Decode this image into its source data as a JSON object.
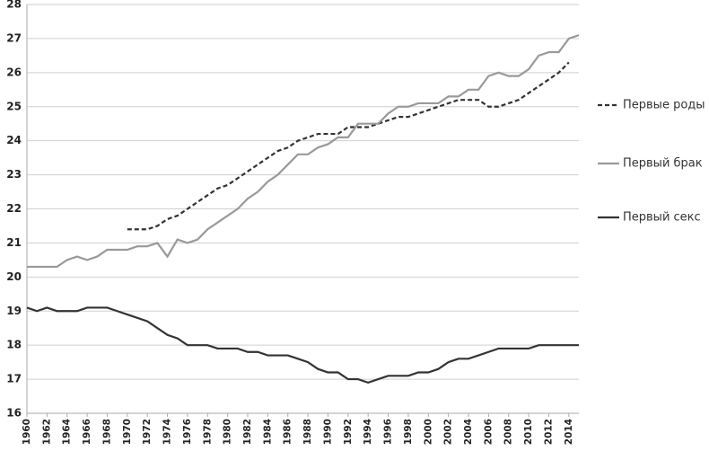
{
  "chart_data": {
    "type": "line",
    "x": [
      1960,
      1961,
      1962,
      1963,
      1964,
      1965,
      1966,
      1967,
      1968,
      1969,
      1970,
      1971,
      1972,
      1973,
      1974,
      1975,
      1976,
      1977,
      1978,
      1979,
      1980,
      1981,
      1982,
      1983,
      1984,
      1985,
      1986,
      1987,
      1988,
      1989,
      1990,
      1991,
      1992,
      1993,
      1994,
      1995,
      1996,
      1997,
      1998,
      1999,
      2000,
      2001,
      2002,
      2003,
      2004,
      2005,
      2006,
      2007,
      2008,
      2009,
      2010,
      2011,
      2012,
      2013,
      2014,
      2015
    ],
    "series": [
      {
        "name": "Первые роды",
        "color": "#333333",
        "dashed": true,
        "values": [
          null,
          null,
          null,
          null,
          null,
          null,
          null,
          null,
          null,
          null,
          21.4,
          21.4,
          21.4,
          21.5,
          21.7,
          21.8,
          22.0,
          22.2,
          22.4,
          22.6,
          22.7,
          22.9,
          23.1,
          23.3,
          23.5,
          23.7,
          23.8,
          24.0,
          24.1,
          24.2,
          24.2,
          24.2,
          24.4,
          24.4,
          24.4,
          24.5,
          24.6,
          24.7,
          24.7,
          24.8,
          24.9,
          25.0,
          25.1,
          25.2,
          25.2,
          25.2,
          25.0,
          25.0,
          25.1,
          25.2,
          25.4,
          25.6,
          25.8,
          26.0,
          26.3,
          null
        ]
      },
      {
        "name": "Первый брак",
        "color": "#999999",
        "dashed": false,
        "values": [
          20.3,
          20.3,
          20.3,
          20.3,
          20.5,
          20.6,
          20.5,
          20.6,
          20.8,
          20.8,
          20.8,
          20.9,
          20.9,
          21.0,
          20.6,
          21.1,
          21.0,
          21.1,
          21.4,
          21.6,
          21.8,
          22.0,
          22.3,
          22.5,
          22.8,
          23.0,
          23.3,
          23.6,
          23.6,
          23.8,
          23.9,
          24.1,
          24.1,
          24.5,
          24.5,
          24.5,
          24.8,
          25.0,
          25.0,
          25.1,
          25.1,
          25.1,
          25.3,
          25.3,
          25.5,
          25.5,
          25.9,
          26.0,
          25.9,
          25.9,
          26.1,
          26.5,
          26.6,
          26.6,
          27.0,
          27.1
        ]
      },
      {
        "name": "Первый секс",
        "color": "#333333",
        "dashed": false,
        "values": [
          19.1,
          19.0,
          19.1,
          19.0,
          19.0,
          19.0,
          19.1,
          19.1,
          19.1,
          19.0,
          18.9,
          18.8,
          18.7,
          18.5,
          18.3,
          18.2,
          18.0,
          18.0,
          18.0,
          17.9,
          17.9,
          17.9,
          17.8,
          17.8,
          17.7,
          17.7,
          17.7,
          17.6,
          17.5,
          17.3,
          17.2,
          17.2,
          17.0,
          17.0,
          16.9,
          17.0,
          17.1,
          17.1,
          17.1,
          17.2,
          17.2,
          17.3,
          17.5,
          17.6,
          17.6,
          17.7,
          17.8,
          17.9,
          17.9,
          17.9,
          17.9,
          18.0,
          18.0,
          18.0,
          18.0,
          18.0
        ]
      }
    ],
    "xlim": [
      1960,
      2015
    ],
    "xticks": [
      1960,
      1962,
      1964,
      1966,
      1968,
      1970,
      1972,
      1974,
      1976,
      1978,
      1980,
      1982,
      1984,
      1986,
      1988,
      1990,
      1992,
      1994,
      1996,
      1998,
      2000,
      2002,
      2004,
      2006,
      2008,
      2010,
      2012,
      2014
    ],
    "ylim": [
      16,
      28
    ],
    "yticks": [
      16,
      17,
      18,
      19,
      20,
      21,
      22,
      23,
      24,
      25,
      26,
      27,
      28
    ],
    "grid": true,
    "legend": "right"
  }
}
